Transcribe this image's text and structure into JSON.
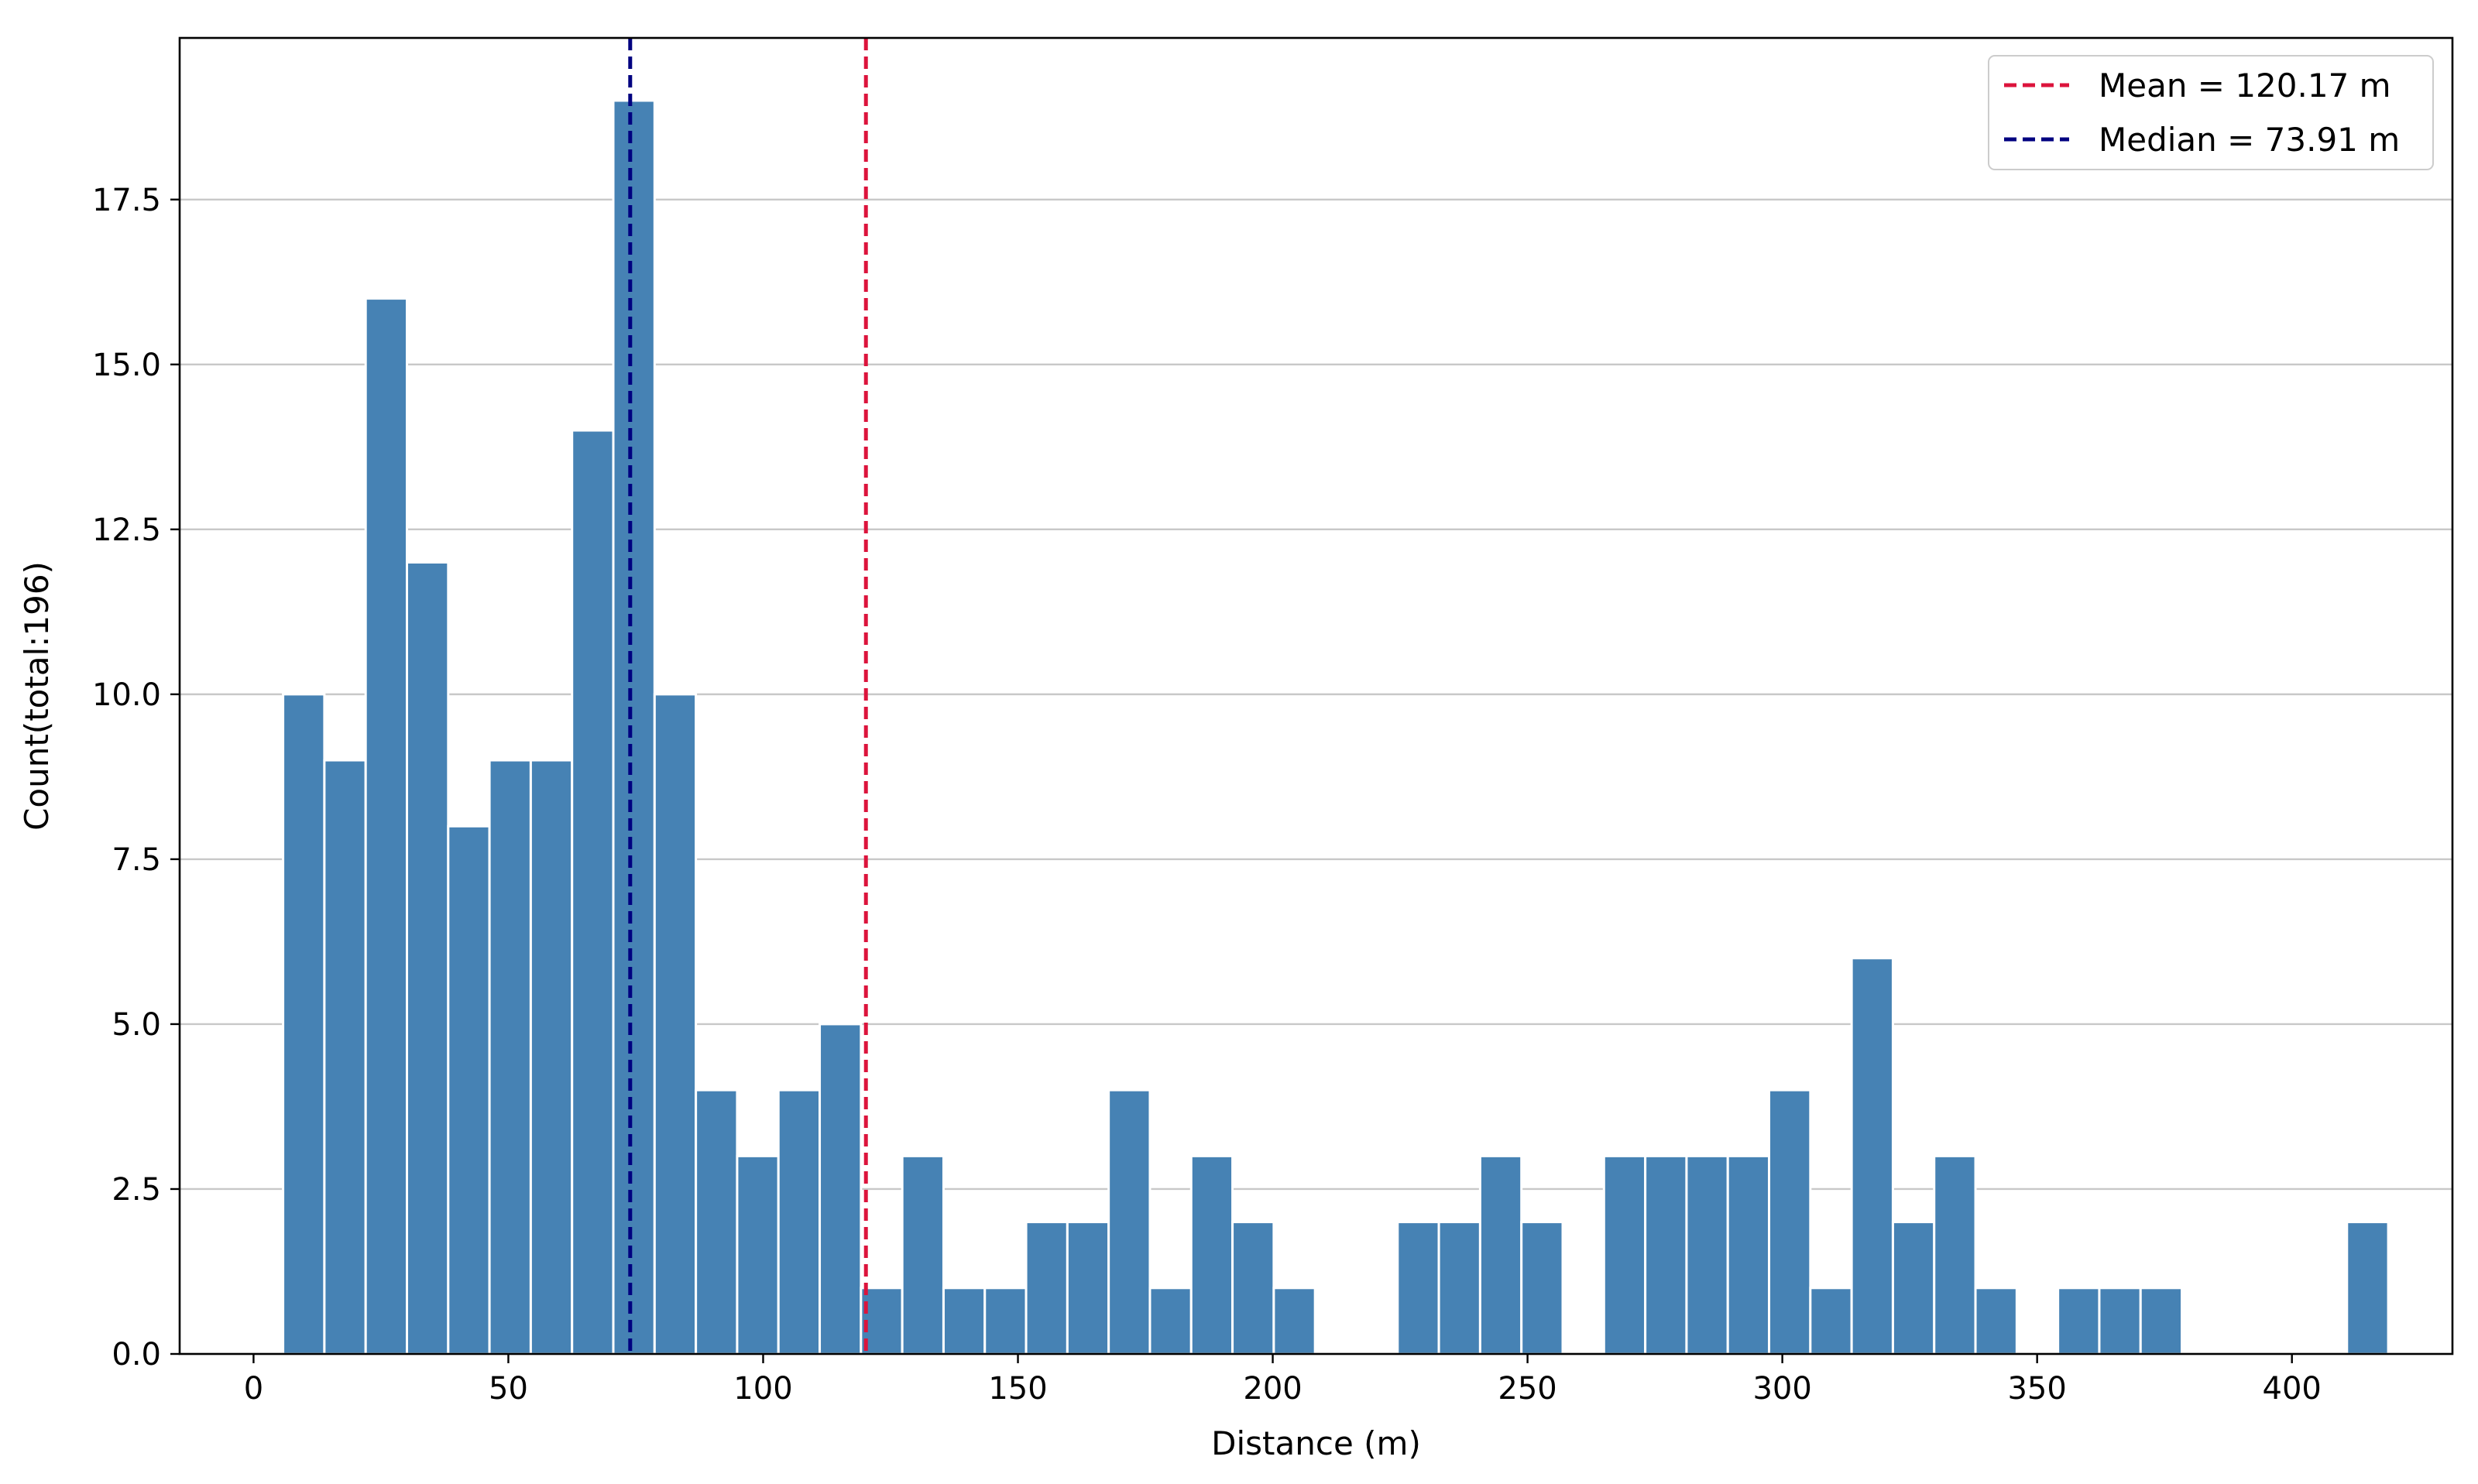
{
  "chart_data": {
    "type": "bar",
    "xlabel": "Distance (m)",
    "ylabel": "Count(total:196)",
    "xlim": [
      -14.5,
      431.5
    ],
    "ylim": [
      0,
      19.95
    ],
    "x_ticks": [
      0,
      50,
      100,
      150,
      200,
      250,
      300,
      350,
      400
    ],
    "x_tick_labels": [
      "0",
      "50",
      "100",
      "150",
      "200",
      "250",
      "300",
      "350",
      "400"
    ],
    "y_ticks": [
      0.0,
      2.5,
      5.0,
      7.5,
      10.0,
      12.5,
      15.0,
      17.5
    ],
    "y_tick_labels": [
      "0.0",
      "2.5",
      "5.0",
      "7.5",
      "10.0",
      "12.5",
      "15.0",
      "17.5"
    ],
    "grid": "horizontal",
    "bin_start": 5.8,
    "bin_width": 8.1,
    "counts": [
      10,
      9,
      16,
      12,
      8,
      9,
      9,
      14,
      19,
      10,
      4,
      3,
      4,
      5,
      1,
      3,
      1,
      1,
      2,
      2,
      4,
      1,
      3,
      2,
      1,
      0,
      0,
      2,
      2,
      3,
      2,
      0,
      3,
      3,
      3,
      3,
      4,
      1,
      6,
      2,
      3,
      1,
      0,
      1,
      1,
      1,
      0,
      0,
      0,
      0,
      2
    ],
    "bar_color": "#4682b4",
    "reference_lines": [
      {
        "name": "Mean = 120.17 m",
        "x": 120.17,
        "color": "#dc143c"
      },
      {
        "name": "Median = 73.91 m",
        "x": 73.91,
        "color": "#000080"
      }
    ],
    "legend_position": "top-right"
  }
}
